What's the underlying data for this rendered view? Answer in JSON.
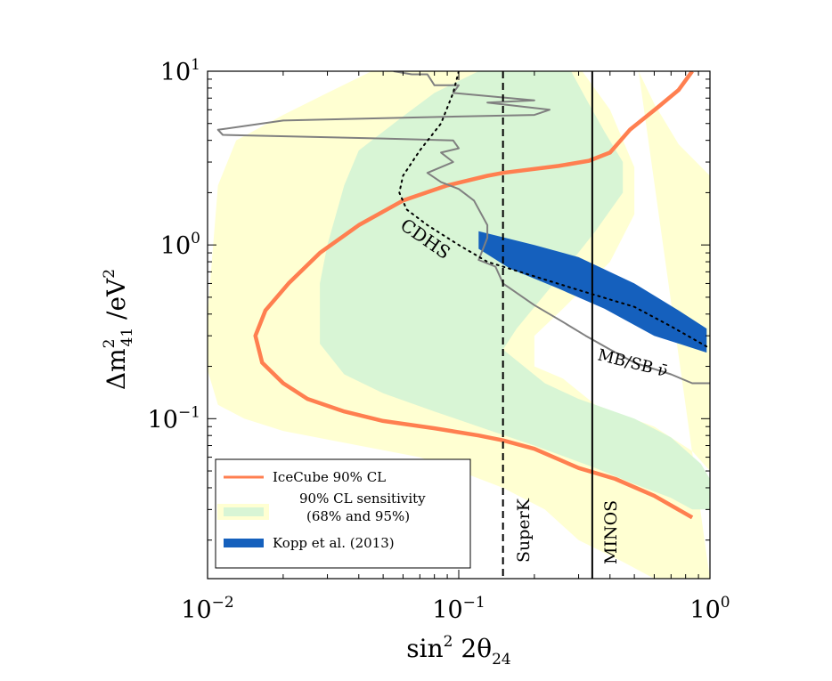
{
  "chart_data": {
    "type": "line",
    "xlabel": "sin² 2θ₂₄",
    "ylabel": "Δm²₄₁ /eV²",
    "xscale": "log",
    "yscale": "log",
    "xlim": [
      0.01,
      1
    ],
    "ylim": [
      0.012,
      10
    ],
    "x_ticks": [
      {
        "value": 0.01,
        "base": "10",
        "exp": "−2"
      },
      {
        "value": 0.1,
        "base": "10",
        "exp": "−1"
      },
      {
        "value": 1,
        "base": "10",
        "exp": "0"
      }
    ],
    "y_ticks": [
      {
        "value": 10,
        "base": "10",
        "exp": "1"
      },
      {
        "value": 1,
        "base": "10",
        "exp": "0"
      },
      {
        "value": 0.1,
        "base": "10",
        "exp": "−1"
      }
    ],
    "grid": false,
    "legend_position": "bottom-left",
    "legend": [
      {
        "label": "IceCube 90% CL",
        "color": "#ff7f50"
      },
      {
        "label": "90% CL sensitivity",
        "color": "#d8f5d5"
      },
      {
        "label": "(68% and 95%)",
        "color": "#ffffd2"
      },
      {
        "label": "Kopp et al. (2013)",
        "color": "#1560bd"
      }
    ],
    "annotations": {
      "cdhs": "CDHS",
      "mbsb": "MB/SB ν̄",
      "superk": "SuperK",
      "minos": "MINOS"
    },
    "colors": {
      "icecube": "#ff7f50",
      "band68": "#d8f5d5",
      "band95": "#ffffd2",
      "kopp": "#1560bd",
      "mbsb": "#808080"
    },
    "series": [
      {
        "name": "IceCube 90% CL",
        "points": [
          [
            0.85,
            10
          ],
          [
            0.75,
            7.8
          ],
          [
            0.62,
            6.2
          ],
          [
            0.48,
            4.6
          ],
          [
            0.4,
            3.4
          ],
          [
            0.33,
            3.05
          ],
          [
            0.25,
            2.85
          ],
          [
            0.15,
            2.6
          ],
          [
            0.13,
            2.5
          ],
          [
            0.09,
            2.2
          ],
          [
            0.06,
            1.8
          ],
          [
            0.04,
            1.3
          ],
          [
            0.028,
            0.9
          ],
          [
            0.021,
            0.6
          ],
          [
            0.017,
            0.42
          ],
          [
            0.0155,
            0.3
          ],
          [
            0.0165,
            0.21
          ],
          [
            0.02,
            0.16
          ],
          [
            0.025,
            0.13
          ],
          [
            0.035,
            0.11
          ],
          [
            0.05,
            0.097
          ],
          [
            0.08,
            0.088
          ],
          [
            0.12,
            0.08
          ],
          [
            0.15,
            0.075
          ],
          [
            0.2,
            0.067
          ],
          [
            0.3,
            0.052
          ],
          [
            0.42,
            0.045
          ],
          [
            0.6,
            0.036
          ],
          [
            0.85,
            0.027
          ]
        ]
      },
      {
        "name": "SuperK",
        "x": 0.15,
        "y_range": [
          0.012,
          10
        ]
      },
      {
        "name": "MINOS",
        "x": 0.34,
        "y_range": [
          0.012,
          10
        ]
      },
      {
        "name": "CDHS",
        "points": [
          [
            0.1,
            10
          ],
          [
            0.095,
            7.5
          ],
          [
            0.085,
            5
          ],
          [
            0.07,
            3.5
          ],
          [
            0.06,
            2.5
          ],
          [
            0.058,
            2
          ],
          [
            0.062,
            1.6
          ],
          [
            0.075,
            1.3
          ],
          [
            0.1,
            1.0
          ],
          [
            0.13,
            0.8
          ],
          [
            0.2,
            0.66
          ],
          [
            0.3,
            0.55
          ],
          [
            0.5,
            0.44
          ],
          [
            0.7,
            0.34
          ],
          [
            0.97,
            0.26
          ]
        ]
      },
      {
        "name": "MB/SB ν̄",
        "points": [
          [
            0.055,
            10
          ],
          [
            0.065,
            9.6
          ],
          [
            0.075,
            9.6
          ],
          [
            0.08,
            8.3
          ],
          [
            0.1,
            8.3
          ],
          [
            0.095,
            7.5
          ],
          [
            0.2,
            6.8
          ],
          [
            0.13,
            6.6
          ],
          [
            0.23,
            6.0
          ],
          [
            0.2,
            5.6
          ],
          [
            0.06,
            5.4
          ],
          [
            0.02,
            5.2
          ],
          [
            0.011,
            4.6
          ],
          [
            0.0115,
            4.3
          ],
          [
            0.05,
            4.1
          ],
          [
            0.095,
            4.0
          ],
          [
            0.1,
            3.6
          ],
          [
            0.085,
            3.4
          ],
          [
            0.095,
            3.0
          ],
          [
            0.075,
            2.6
          ],
          [
            0.085,
            2.3
          ],
          [
            0.1,
            2.1
          ],
          [
            0.115,
            1.8
          ],
          [
            0.13,
            1.3
          ],
          [
            0.13,
            1.1
          ],
          [
            0.125,
            0.95
          ],
          [
            0.12,
            0.82
          ],
          [
            0.14,
            0.75
          ],
          [
            0.15,
            0.6
          ],
          [
            0.2,
            0.45
          ],
          [
            0.26,
            0.36
          ],
          [
            0.32,
            0.3
          ],
          [
            0.4,
            0.25
          ],
          [
            0.5,
            0.21
          ],
          [
            0.7,
            0.18
          ],
          [
            0.85,
            0.16
          ],
          [
            1.0,
            0.16
          ]
        ]
      },
      {
        "name": "Kopp et al. (2013)",
        "upper": [
          [
            0.12,
            1.2
          ],
          [
            0.2,
            1.0
          ],
          [
            0.3,
            0.85
          ],
          [
            0.5,
            0.6
          ],
          [
            0.75,
            0.42
          ],
          [
            0.97,
            0.33
          ]
        ],
        "lower": [
          [
            0.12,
            0.95
          ],
          [
            0.16,
            0.73
          ],
          [
            0.25,
            0.56
          ],
          [
            0.38,
            0.43
          ],
          [
            0.6,
            0.3
          ],
          [
            0.97,
            0.24
          ]
        ]
      },
      {
        "name": "90% CL sensitivity (95%)",
        "left_edge": [
          [
            0.045,
            10
          ],
          [
            0.03,
            7.5
          ],
          [
            0.02,
            5.6
          ],
          [
            0.013,
            4.0
          ],
          [
            0.011,
            2.2
          ],
          [
            0.01,
            0.4
          ],
          [
            0.01,
            0.19
          ],
          [
            0.011,
            0.12
          ],
          [
            0.014,
            0.1
          ],
          [
            0.02,
            0.085
          ],
          [
            0.04,
            0.07
          ],
          [
            0.07,
            0.06
          ],
          [
            0.1,
            0.05
          ],
          [
            0.15,
            0.04
          ],
          [
            0.22,
            0.03
          ],
          [
            0.3,
            0.02
          ],
          [
            0.45,
            0.015
          ],
          [
            0.6,
            0.012
          ],
          [
            1.0,
            0.012
          ]
        ],
        "right_edge": [
          [
            0.52,
            10
          ],
          [
            0.6,
            6.5
          ],
          [
            0.75,
            3.8
          ],
          [
            1.0,
            2.5
          ],
          [
            1.0,
            0.05
          ],
          [
            0.85,
            0.065
          ],
          [
            0.6,
            0.09
          ],
          [
            0.35,
            0.12
          ],
          [
            0.26,
            0.17
          ],
          [
            0.2,
            0.2
          ],
          [
            0.2,
            0.3
          ],
          [
            0.26,
            0.43
          ],
          [
            0.4,
            0.8
          ],
          [
            0.5,
            1.5
          ],
          [
            0.5,
            2.8
          ],
          [
            0.4,
            6.0
          ],
          [
            0.31,
            10
          ]
        ]
      },
      {
        "name": "90% CL sensitivity (68%)",
        "left_edge": [
          [
            0.12,
            10
          ],
          [
            0.08,
            7.5
          ],
          [
            0.06,
            5.5
          ],
          [
            0.04,
            3.5
          ],
          [
            0.035,
            2.2
          ],
          [
            0.03,
            1.0
          ],
          [
            0.028,
            0.6
          ],
          [
            0.028,
            0.27
          ],
          [
            0.035,
            0.18
          ],
          [
            0.05,
            0.14
          ],
          [
            0.08,
            0.11
          ],
          [
            0.12,
            0.09
          ],
          [
            0.2,
            0.07
          ],
          [
            0.35,
            0.052
          ],
          [
            0.5,
            0.042
          ],
          [
            0.7,
            0.035
          ],
          [
            0.85,
            0.03
          ],
          [
            1.0,
            0.03
          ]
        ],
        "right_edge": [
          [
            0.28,
            10
          ],
          [
            0.32,
            7
          ],
          [
            0.38,
            4.5
          ],
          [
            0.45,
            3.0
          ],
          [
            0.45,
            2.0
          ],
          [
            0.35,
            1.2
          ],
          [
            0.25,
            0.65
          ],
          [
            0.17,
            0.33
          ],
          [
            0.15,
            0.25
          ],
          [
            0.22,
            0.16
          ],
          [
            0.3,
            0.13
          ],
          [
            0.5,
            0.1
          ],
          [
            0.7,
            0.078
          ],
          [
            0.92,
            0.055
          ],
          [
            1.0,
            0.045
          ]
        ]
      }
    ]
  }
}
